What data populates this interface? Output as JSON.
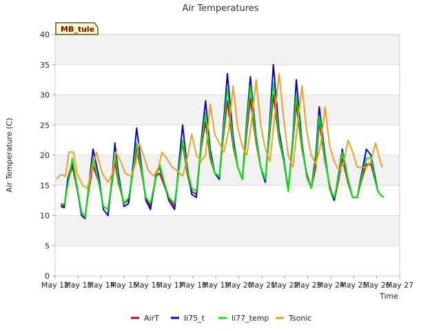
{
  "chart_data": {
    "type": "line",
    "title": "Air Temperatures",
    "xlabel": "Time",
    "ylabel": "Air Temperature (C)",
    "station_label": "MB_tule",
    "xlim": [
      12,
      27
    ],
    "ylim": [
      0,
      40
    ],
    "x_ticks": [
      {
        "v": 12,
        "label": "May 12"
      },
      {
        "v": 13,
        "label": "May 13"
      },
      {
        "v": 14,
        "label": "May 14"
      },
      {
        "v": 15,
        "label": "May 15"
      },
      {
        "v": 16,
        "label": "May 16"
      },
      {
        "v": 17,
        "label": "May 17"
      },
      {
        "v": 18,
        "label": "May 18"
      },
      {
        "v": 19,
        "label": "May 19"
      },
      {
        "v": 20,
        "label": "May 20"
      },
      {
        "v": 21,
        "label": "May 21"
      },
      {
        "v": 22,
        "label": "May 22"
      },
      {
        "v": 23,
        "label": "May 23"
      },
      {
        "v": 24,
        "label": "May 24"
      },
      {
        "v": 25,
        "label": "May 25"
      },
      {
        "v": 26,
        "label": "May 26"
      },
      {
        "v": 27,
        "label": "May 27"
      }
    ],
    "y_ticks": [
      0,
      5,
      10,
      15,
      20,
      25,
      30,
      35,
      40
    ],
    "series": [
      {
        "name": "AirT",
        "color": "#cc0000",
        "x": [
          12.25,
          12.4,
          12.55,
          12.75,
          12.9,
          13.15,
          13.3,
          13.5,
          13.65,
          13.9,
          14.1,
          14.3,
          14.5,
          14.6,
          14.75,
          15.0,
          15.2,
          15.4,
          15.55,
          15.75,
          15.95,
          16.15,
          16.4,
          16.55,
          16.75,
          16.95,
          17.2,
          17.35,
          17.55,
          17.75,
          17.95,
          18.15,
          18.35,
          18.55,
          18.75,
          18.95,
          19.15,
          19.35,
          19.5,
          19.75,
          19.95,
          20.15,
          20.35,
          20.5,
          20.75,
          20.95,
          21.15,
          21.35,
          21.5,
          21.75,
          21.95,
          22.15,
          22.35,
          22.5,
          22.75,
          22.95,
          23.15,
          23.35,
          23.5,
          23.75,
          23.95,
          24.15,
          24.35,
          24.5,
          24.75,
          24.95,
          25.15,
          25.35,
          25.55,
          25.75,
          25.95,
          26.05,
          26.15,
          26.3
        ],
        "y": [
          11.8,
          11.5,
          15.5,
          18.2,
          15.5,
          10.5,
          9.8,
          15.0,
          18.3,
          15.5,
          11.5,
          11.0,
          16.0,
          19.0,
          15.5,
          12.0,
          12.5,
          17.5,
          21.0,
          17.5,
          13.0,
          11.5,
          16.5,
          17.0,
          15.0,
          13.0,
          11.5,
          16.5,
          22.0,
          17.0,
          14.0,
          13.5,
          21.0,
          25.5,
          19.5,
          17.0,
          16.5,
          24.0,
          29.0,
          21.5,
          18.0,
          16.0,
          24.0,
          29.5,
          22.0,
          18.0,
          16.0,
          24.0,
          30.0,
          22.5,
          19.0,
          14.5,
          22.0,
          28.5,
          21.0,
          17.0,
          14.5,
          18.0,
          25.5,
          19.0,
          15.0,
          12.5,
          16.0,
          19.5,
          15.5,
          13.0,
          13.0,
          16.0,
          18.5,
          18.5,
          15.5,
          14.0,
          13.5,
          13.0
        ]
      },
      {
        "name": "li75_t",
        "color": "#0000cc",
        "x": [
          12.25,
          12.4,
          12.55,
          12.75,
          12.9,
          13.15,
          13.3,
          13.5,
          13.65,
          13.9,
          14.1,
          14.3,
          14.5,
          14.6,
          14.75,
          15.0,
          15.2,
          15.4,
          15.55,
          15.75,
          15.95,
          16.15,
          16.4,
          16.55,
          16.75,
          16.95,
          17.2,
          17.35,
          17.55,
          17.75,
          17.95,
          18.15,
          18.35,
          18.55,
          18.75,
          18.95,
          19.15,
          19.35,
          19.5,
          19.75,
          19.95,
          20.15,
          20.35,
          20.5,
          20.75,
          20.95,
          21.15,
          21.35,
          21.5,
          21.75,
          21.95,
          22.15,
          22.35,
          22.5,
          22.75,
          22.95,
          23.15,
          23.35,
          23.5,
          23.75,
          23.95,
          24.15,
          24.35,
          24.5,
          24.75,
          24.95,
          25.15,
          25.35,
          25.55,
          25.75,
          25.95,
          26.05,
          26.15,
          26.3
        ],
        "y": [
          11.5,
          11.3,
          16.0,
          19.0,
          16.0,
          10.0,
          9.5,
          16.0,
          21.0,
          16.5,
          11.0,
          10.0,
          17.0,
          22.0,
          17.0,
          11.5,
          12.0,
          18.5,
          24.5,
          18.5,
          12.5,
          11.0,
          17.0,
          18.0,
          15.5,
          12.5,
          11.0,
          17.0,
          25.0,
          18.0,
          13.5,
          13.0,
          22.0,
          29.0,
          21.0,
          17.0,
          16.0,
          26.0,
          33.5,
          23.0,
          18.0,
          16.0,
          26.0,
          33.0,
          23.0,
          18.0,
          15.5,
          26.0,
          35.0,
          24.0,
          19.5,
          14.0,
          23.0,
          32.5,
          22.0,
          16.5,
          14.5,
          20.0,
          28.0,
          20.0,
          14.5,
          12.5,
          17.0,
          21.0,
          16.0,
          13.0,
          13.0,
          17.0,
          21.0,
          20.0,
          16.0,
          14.0,
          13.5,
          13.0
        ]
      },
      {
        "name": "li77_temp",
        "color": "#00ee00",
        "x": [
          12.25,
          12.4,
          12.55,
          12.75,
          12.9,
          13.15,
          13.3,
          13.5,
          13.65,
          13.9,
          14.1,
          14.3,
          14.5,
          14.6,
          14.75,
          15.0,
          15.2,
          15.4,
          15.55,
          15.75,
          15.95,
          16.15,
          16.4,
          16.55,
          16.75,
          16.95,
          17.2,
          17.35,
          17.55,
          17.75,
          17.95,
          18.15,
          18.35,
          18.55,
          18.75,
          18.95,
          19.15,
          19.35,
          19.5,
          19.75,
          19.95,
          20.15,
          20.35,
          20.5,
          20.75,
          20.95,
          21.15,
          21.35,
          21.5,
          21.75,
          21.95,
          22.15,
          22.35,
          22.5,
          22.75,
          22.95,
          23.15,
          23.35,
          23.5,
          23.75,
          23.95,
          24.15,
          24.35,
          24.5,
          24.75,
          24.95,
          25.15,
          25.35,
          25.55,
          25.75,
          25.95,
          26.05,
          26.15,
          26.3
        ],
        "y": [
          12.0,
          11.8,
          15.0,
          19.5,
          16.0,
          10.5,
          9.8,
          15.5,
          19.5,
          15.5,
          11.5,
          11.0,
          16.5,
          20.5,
          16.0,
          12.0,
          13.0,
          17.5,
          22.0,
          18.0,
          13.0,
          12.0,
          16.5,
          18.5,
          15.5,
          13.0,
          12.0,
          16.5,
          22.5,
          17.5,
          14.5,
          14.0,
          21.5,
          27.0,
          20.0,
          17.0,
          16.5,
          25.0,
          31.0,
          22.0,
          18.0,
          16.0,
          25.0,
          31.5,
          22.5,
          18.0,
          16.0,
          25.0,
          32.0,
          23.0,
          19.0,
          14.0,
          22.5,
          30.0,
          21.5,
          16.5,
          14.5,
          19.0,
          26.5,
          19.5,
          14.5,
          13.0,
          16.5,
          20.5,
          16.0,
          13.0,
          13.0,
          16.5,
          19.5,
          19.5,
          15.5,
          14.0,
          13.5,
          13.0
        ]
      },
      {
        "name": "Tsonic",
        "color": "#f0a020",
        "x": [
          12.05,
          12.25,
          12.45,
          12.6,
          12.8,
          12.95,
          13.2,
          13.4,
          13.6,
          13.8,
          14.05,
          14.3,
          14.5,
          14.65,
          14.85,
          15.05,
          15.3,
          15.5,
          15.65,
          15.85,
          16.05,
          16.3,
          16.5,
          16.65,
          16.85,
          17.1,
          17.3,
          17.55,
          17.75,
          17.95,
          18.15,
          18.35,
          18.55,
          18.75,
          18.95,
          19.15,
          19.35,
          19.55,
          19.75,
          19.95,
          20.15,
          20.35,
          20.55,
          20.75,
          20.95,
          21.15,
          21.35,
          21.55,
          21.75,
          21.95,
          22.15,
          22.35,
          22.55,
          22.75,
          22.95,
          23.15,
          23.35,
          23.55,
          23.75,
          23.95,
          24.15,
          24.35,
          24.55,
          24.75,
          24.95,
          25.15,
          25.35,
          25.55,
          25.75,
          25.95,
          26.15,
          26.25
        ],
        "y": [
          16.0,
          16.8,
          16.5,
          20.5,
          20.5,
          17.0,
          15.0,
          14.5,
          17.5,
          20.5,
          17.0,
          15.5,
          17.0,
          20.5,
          19.0,
          17.0,
          16.5,
          18.5,
          22.0,
          20.0,
          17.5,
          16.5,
          18.0,
          20.5,
          19.5,
          18.0,
          17.5,
          16.5,
          19.5,
          23.5,
          20.0,
          19.0,
          20.0,
          28.5,
          23.5,
          22.0,
          20.5,
          24.0,
          31.5,
          24.5,
          21.5,
          20.0,
          25.5,
          32.5,
          25.0,
          21.0,
          19.0,
          26.0,
          33.5,
          26.0,
          20.0,
          18.0,
          25.0,
          31.5,
          24.0,
          20.0,
          18.5,
          21.5,
          28.0,
          21.5,
          19.0,
          17.5,
          18.5,
          22.5,
          20.5,
          18.0,
          18.0,
          18.0,
          19.0,
          22.0,
          19.0,
          18.0
        ]
      }
    ],
    "legend_position": "bottom",
    "grid": true
  }
}
